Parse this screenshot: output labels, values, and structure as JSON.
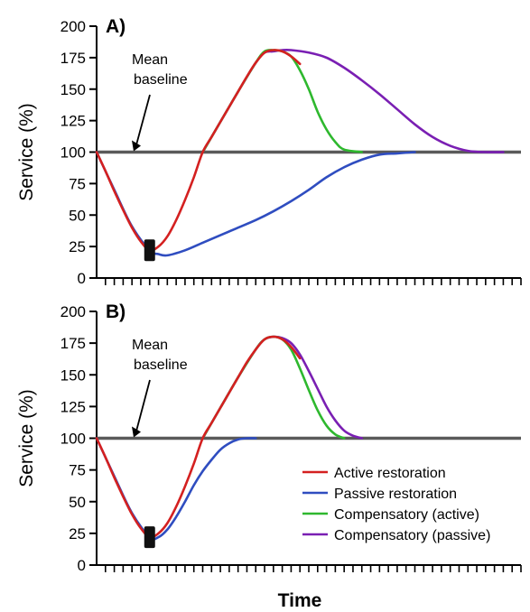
{
  "chart_data": [
    {
      "panel": "A)",
      "type": "line",
      "ylabel": "Service (%)",
      "ylim": [
        0,
        200
      ],
      "yticks": [
        0,
        25,
        50,
        75,
        100,
        125,
        150,
        175,
        200
      ],
      "annotation": [
        "Mean",
        "baseline"
      ],
      "baseline": 100,
      "x_ticks_count": 48,
      "series": [
        {
          "color": "#d42020",
          "x": [
            0,
            1,
            2,
            3,
            4,
            5,
            6,
            7,
            8,
            9,
            10,
            11,
            12,
            13,
            14,
            15,
            16,
            17,
            18,
            19,
            20,
            21,
            22,
            23
          ],
          "y": [
            100,
            85,
            69,
            54,
            40,
            29,
            22,
            25,
            33,
            46,
            62,
            80,
            100,
            112,
            124,
            136,
            148,
            160,
            171,
            179,
            181,
            180,
            176,
            170
          ]
        },
        {
          "color": "#2f4dc0",
          "x": [
            0,
            2,
            4,
            6,
            7,
            8,
            10,
            12,
            14,
            16,
            18,
            20,
            22,
            24,
            26,
            28,
            30,
            32,
            34,
            36
          ],
          "y": [
            100,
            70,
            41,
            22,
            19,
            18,
            22,
            28,
            34,
            40,
            46,
            53,
            61,
            70,
            80,
            88,
            94,
            98,
            99,
            100
          ]
        },
        {
          "color": "#2eb82e",
          "x": [
            12,
            14,
            16,
            18,
            19,
            20,
            21,
            22,
            23,
            24,
            25,
            26,
            27,
            28,
            30
          ],
          "y": [
            100,
            124,
            148,
            171,
            180,
            181,
            180,
            176,
            165,
            150,
            132,
            118,
            108,
            102,
            100
          ]
        },
        {
          "color": "#7a1fb3",
          "x": [
            12,
            14,
            16,
            18,
            19,
            20,
            21,
            22,
            24,
            26,
            28,
            30,
            32,
            34,
            36,
            38,
            40,
            42,
            44,
            46
          ],
          "y": [
            100,
            124,
            148,
            171,
            179,
            180,
            181,
            181,
            179,
            175,
            167,
            157,
            146,
            134,
            122,
            112,
            105,
            101,
            100,
            100
          ]
        }
      ]
    },
    {
      "panel": "B)",
      "type": "line",
      "ylabel": "Service (%)",
      "ylim": [
        0,
        200
      ],
      "yticks": [
        0,
        25,
        50,
        75,
        100,
        125,
        150,
        175,
        200
      ],
      "annotation": [
        "Mean",
        "baseline"
      ],
      "baseline": 100,
      "x_ticks_count": 48,
      "series": [
        {
          "color": "#d42020",
          "name": "Active restoration",
          "x": [
            0,
            1,
            2,
            3,
            4,
            5,
            6,
            7,
            8,
            9,
            10,
            11,
            12,
            13,
            14,
            15,
            16,
            17,
            18,
            19,
            20,
            21,
            22,
            23
          ],
          "y": [
            100,
            85,
            69,
            54,
            40,
            29,
            22,
            25,
            33,
            46,
            62,
            80,
            100,
            112,
            124,
            136,
            148,
            160,
            170,
            178,
            180,
            178,
            172,
            163
          ]
        },
        {
          "color": "#2f4dc0",
          "name": "Passive restoration",
          "x": [
            0,
            2,
            4,
            6,
            7,
            8,
            9,
            10,
            11,
            12,
            13,
            14,
            15,
            16,
            17,
            18
          ],
          "y": [
            100,
            70,
            41,
            22,
            22,
            28,
            38,
            50,
            63,
            74,
            83,
            91,
            96,
            99,
            100,
            100
          ]
        },
        {
          "color": "#2eb82e",
          "name": "Compensatory (active)",
          "x": [
            12,
            14,
            16,
            18,
            19,
            20,
            21,
            22,
            23,
            24,
            25,
            26,
            27,
            28
          ],
          "y": [
            100,
            124,
            148,
            170,
            178,
            180,
            178,
            170,
            155,
            138,
            122,
            110,
            103,
            100
          ]
        },
        {
          "color": "#7a1fb3",
          "name": "Compensatory (passive)",
          "x": [
            12,
            14,
            16,
            18,
            19,
            20,
            21,
            22,
            23,
            24,
            25,
            26,
            27,
            28,
            29,
            30
          ],
          "y": [
            100,
            124,
            148,
            170,
            178,
            180,
            179,
            175,
            166,
            153,
            139,
            125,
            114,
            106,
            102,
            100
          ]
        }
      ]
    }
  ],
  "xlabel": "Time",
  "legend": [
    "Active restoration",
    "Passive restoration",
    "Compensatory (active)",
    "Compensatory (passive)"
  ]
}
